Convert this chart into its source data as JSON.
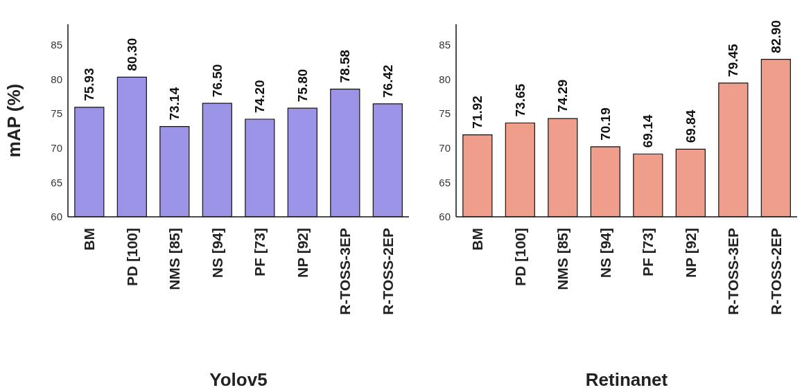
{
  "chart_data": [
    {
      "type": "bar",
      "xlabel": "Yolov5",
      "ylabel": "mAP (%)",
      "categories": [
        "BM",
        "PD [100]",
        "NMS [85]",
        "NS [94]",
        "PF [73]",
        "NP [92]",
        "R-TOSS-3EP",
        "R-TOSS-2EP"
      ],
      "series": [
        {
          "color": "#9b93e6",
          "values": [
            75.93,
            80.3,
            73.14,
            76.5,
            74.2,
            75.8,
            78.58,
            76.42
          ],
          "value_labels": [
            "75.93",
            "80.30",
            "73.14",
            "76.50",
            "74.20",
            "75.80",
            "78.58",
            "76.42"
          ]
        }
      ],
      "ylim": [
        60,
        88
      ],
      "yticks": [
        60,
        65,
        70,
        75,
        80,
        85
      ],
      "grid": false,
      "legend": false
    },
    {
      "type": "bar",
      "xlabel": "Retinanet",
      "categories": [
        "BM",
        "PD [100]",
        "NMS [85]",
        "NS [94]",
        "PF [73]",
        "NP [92]",
        "R-TOSS-3EP",
        "R-TOSS-2EP"
      ],
      "series": [
        {
          "color": "#f09e8c",
          "values": [
            71.92,
            73.65,
            74.29,
            70.19,
            69.14,
            69.84,
            79.45,
            82.9
          ],
          "value_labels": [
            "71.92",
            "73.65",
            "74.29",
            "70.19",
            "69.14",
            "69.84",
            "79.45",
            "82.90"
          ]
        }
      ],
      "ylim": [
        60,
        88
      ],
      "yticks": [
        60,
        65,
        70,
        75,
        80,
        85
      ],
      "grid": false,
      "legend": false
    }
  ]
}
